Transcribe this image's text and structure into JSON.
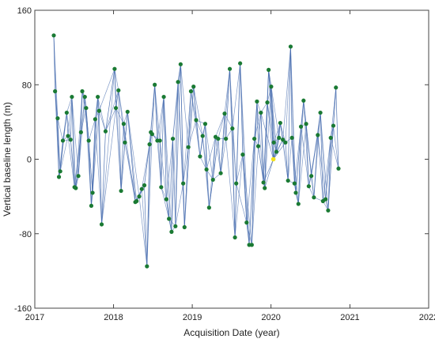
{
  "chart_data": {
    "type": "scatter",
    "title": "",
    "xlabel": "Acquisition Date (year)",
    "ylabel": "Vertical baseline length (m)",
    "xlim": [
      "2017-01-01",
      "2022-01-01"
    ],
    "ylim": [
      -160,
      160
    ],
    "xticks": [
      "2017",
      "2018",
      "2019",
      "2020",
      "2021",
      "2022"
    ],
    "yticks": [
      -160,
      -80,
      0,
      80,
      160
    ],
    "grid": false,
    "colors": {
      "point": "#1a7a33",
      "reference": "#f2e21c",
      "edge": "#4a6fb0"
    },
    "reference": {
      "date": "2020-01-12",
      "value": 0
    },
    "points": [
      {
        "date": "2017-03-30",
        "value": 133
      },
      {
        "date": "2017-04-05",
        "value": 73
      },
      {
        "date": "2017-04-17",
        "value": 44
      },
      {
        "date": "2017-04-23",
        "value": -19
      },
      {
        "date": "2017-04-29",
        "value": -13
      },
      {
        "date": "2017-05-11",
        "value": 20
      },
      {
        "date": "2017-05-29",
        "value": 50
      },
      {
        "date": "2017-06-04",
        "value": 25
      },
      {
        "date": "2017-06-16",
        "value": 21
      },
      {
        "date": "2017-06-22",
        "value": 67
      },
      {
        "date": "2017-07-04",
        "value": -30
      },
      {
        "date": "2017-07-10",
        "value": -31
      },
      {
        "date": "2017-07-22",
        "value": -18
      },
      {
        "date": "2017-08-03",
        "value": 29
      },
      {
        "date": "2017-08-09",
        "value": 73
      },
      {
        "date": "2017-08-21",
        "value": 67
      },
      {
        "date": "2017-08-27",
        "value": 55
      },
      {
        "date": "2017-09-08",
        "value": 20
      },
      {
        "date": "2017-09-20",
        "value": -50
      },
      {
        "date": "2017-09-26",
        "value": -36
      },
      {
        "date": "2017-10-08",
        "value": 43
      },
      {
        "date": "2017-10-20",
        "value": 67
      },
      {
        "date": "2017-10-26",
        "value": 52
      },
      {
        "date": "2017-11-07",
        "value": -70
      },
      {
        "date": "2017-11-25",
        "value": 30
      },
      {
        "date": "2018-01-06",
        "value": 97
      },
      {
        "date": "2018-01-12",
        "value": 55
      },
      {
        "date": "2018-01-24",
        "value": 74
      },
      {
        "date": "2018-02-05",
        "value": -34
      },
      {
        "date": "2018-02-17",
        "value": 38
      },
      {
        "date": "2018-02-23",
        "value": 18
      },
      {
        "date": "2018-03-07",
        "value": 51
      },
      {
        "date": "2018-04-12",
        "value": -46
      },
      {
        "date": "2018-04-18",
        "value": -45
      },
      {
        "date": "2018-04-30",
        "value": -40
      },
      {
        "date": "2018-05-12",
        "value": -32
      },
      {
        "date": "2018-05-24",
        "value": -28
      },
      {
        "date": "2018-06-05",
        "value": -115
      },
      {
        "date": "2018-06-17",
        "value": 16
      },
      {
        "date": "2018-06-23",
        "value": 29
      },
      {
        "date": "2018-06-29",
        "value": 27
      },
      {
        "date": "2018-07-11",
        "value": 80
      },
      {
        "date": "2018-07-23",
        "value": 20
      },
      {
        "date": "2018-08-04",
        "value": 20
      },
      {
        "date": "2018-08-10",
        "value": -30
      },
      {
        "date": "2018-08-22",
        "value": 67
      },
      {
        "date": "2018-09-03",
        "value": -43
      },
      {
        "date": "2018-09-15",
        "value": -64
      },
      {
        "date": "2018-09-27",
        "value": -78
      },
      {
        "date": "2018-10-03",
        "value": 22
      },
      {
        "date": "2018-10-15",
        "value": -72
      },
      {
        "date": "2018-10-27",
        "value": 83
      },
      {
        "date": "2018-11-08",
        "value": 102
      },
      {
        "date": "2018-11-20",
        "value": -26
      },
      {
        "date": "2018-11-26",
        "value": -73
      },
      {
        "date": "2018-12-14",
        "value": 13
      },
      {
        "date": "2018-12-26",
        "value": 73
      },
      {
        "date": "2019-01-07",
        "value": 78
      },
      {
        "date": "2019-01-19",
        "value": 42
      },
      {
        "date": "2019-02-06",
        "value": 3
      },
      {
        "date": "2019-02-18",
        "value": 25
      },
      {
        "date": "2019-03-02",
        "value": 38
      },
      {
        "date": "2019-03-08",
        "value": -11
      },
      {
        "date": "2019-03-20",
        "value": -52
      },
      {
        "date": "2019-04-07",
        "value": -22
      },
      {
        "date": "2019-04-19",
        "value": 24
      },
      {
        "date": "2019-05-01",
        "value": 22
      },
      {
        "date": "2019-05-13",
        "value": -15
      },
      {
        "date": "2019-05-31",
        "value": 49
      },
      {
        "date": "2019-06-06",
        "value": 22
      },
      {
        "date": "2019-06-24",
        "value": 97
      },
      {
        "date": "2019-07-06",
        "value": 33
      },
      {
        "date": "2019-07-18",
        "value": -84
      },
      {
        "date": "2019-07-24",
        "value": -26
      },
      {
        "date": "2019-08-11",
        "value": 103
      },
      {
        "date": "2019-08-23",
        "value": 5
      },
      {
        "date": "2019-09-10",
        "value": -68
      },
      {
        "date": "2019-09-22",
        "value": -92
      },
      {
        "date": "2019-10-04",
        "value": -92
      },
      {
        "date": "2019-10-16",
        "value": 22
      },
      {
        "date": "2019-10-28",
        "value": 62
      },
      {
        "date": "2019-11-03",
        "value": 14
      },
      {
        "date": "2019-11-15",
        "value": 50
      },
      {
        "date": "2019-11-27",
        "value": -25
      },
      {
        "date": "2019-12-03",
        "value": -31
      },
      {
        "date": "2019-12-15",
        "value": 61
      },
      {
        "date": "2019-12-21",
        "value": 96
      },
      {
        "date": "2020-01-02",
        "value": 78
      },
      {
        "date": "2020-01-14",
        "value": 18
      },
      {
        "date": "2020-01-26",
        "value": 8
      },
      {
        "date": "2020-02-07",
        "value": 23
      },
      {
        "date": "2020-02-13",
        "value": 39
      },
      {
        "date": "2020-02-25",
        "value": 21
      },
      {
        "date": "2020-03-08",
        "value": 18
      },
      {
        "date": "2020-03-20",
        "value": -23
      },
      {
        "date": "2020-04-01",
        "value": 121
      },
      {
        "date": "2020-04-07",
        "value": 23
      },
      {
        "date": "2020-04-19",
        "value": -26
      },
      {
        "date": "2020-04-25",
        "value": -36
      },
      {
        "date": "2020-05-07",
        "value": -48
      },
      {
        "date": "2020-05-19",
        "value": 35
      },
      {
        "date": "2020-05-31",
        "value": 63
      },
      {
        "date": "2020-06-12",
        "value": 38
      },
      {
        "date": "2020-06-24",
        "value": -29
      },
      {
        "date": "2020-07-06",
        "value": -18
      },
      {
        "date": "2020-07-18",
        "value": -41
      },
      {
        "date": "2020-08-05",
        "value": 26
      },
      {
        "date": "2020-08-17",
        "value": 50
      },
      {
        "date": "2020-08-29",
        "value": -45
      },
      {
        "date": "2020-09-10",
        "value": -43
      },
      {
        "date": "2020-09-22",
        "value": -55
      },
      {
        "date": "2020-10-04",
        "value": 23
      },
      {
        "date": "2020-10-16",
        "value": 36
      },
      {
        "date": "2020-10-28",
        "value": 77
      },
      {
        "date": "2020-11-09",
        "value": -10
      }
    ]
  }
}
